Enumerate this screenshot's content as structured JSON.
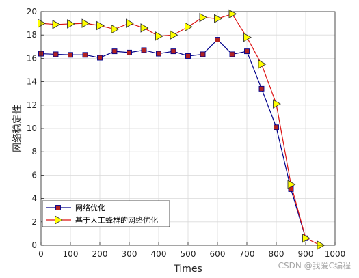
{
  "chart_data": {
    "type": "line",
    "xlabel": "Times",
    "ylabel": "网络稳定性",
    "xlim": [
      0,
      1000
    ],
    "ylim": [
      0,
      20
    ],
    "xticks": [
      0,
      100,
      200,
      300,
      400,
      500,
      600,
      700,
      800,
      900,
      1000
    ],
    "yticks": [
      0,
      2,
      4,
      6,
      8,
      10,
      12,
      14,
      16,
      18,
      20
    ],
    "grid": true,
    "legend_position": "bottom-left",
    "series": [
      {
        "name": "网络优化",
        "color": "#00008B",
        "marker_color": "#B22222",
        "marker": "square",
        "x": [
          0,
          50,
          100,
          150,
          200,
          250,
          300,
          350,
          400,
          450,
          500,
          550,
          600,
          650,
          700,
          750,
          800,
          850,
          900
        ],
        "y": [
          16.4,
          16.35,
          16.3,
          16.3,
          16.05,
          16.6,
          16.5,
          16.7,
          16.4,
          16.6,
          16.2,
          16.35,
          17.6,
          16.35,
          16.6,
          13.4,
          10.1,
          4.8,
          0.6
        ]
      },
      {
        "name": "基于人工蜂群的网络优化",
        "color": "#DD1111",
        "marker_color": "#FFFF00",
        "marker": "triangle-right",
        "x": [
          0,
          50,
          100,
          150,
          200,
          250,
          300,
          350,
          400,
          450,
          500,
          550,
          600,
          650,
          700,
          750,
          800,
          850,
          900,
          950
        ],
        "y": [
          19.0,
          18.9,
          18.95,
          19.0,
          18.8,
          18.5,
          19.0,
          18.6,
          17.9,
          18.0,
          18.7,
          19.5,
          19.4,
          19.8,
          17.8,
          15.5,
          12.1,
          5.2,
          0.6,
          0.0
        ]
      }
    ]
  },
  "watermark": "CSDN @我爱C编程"
}
